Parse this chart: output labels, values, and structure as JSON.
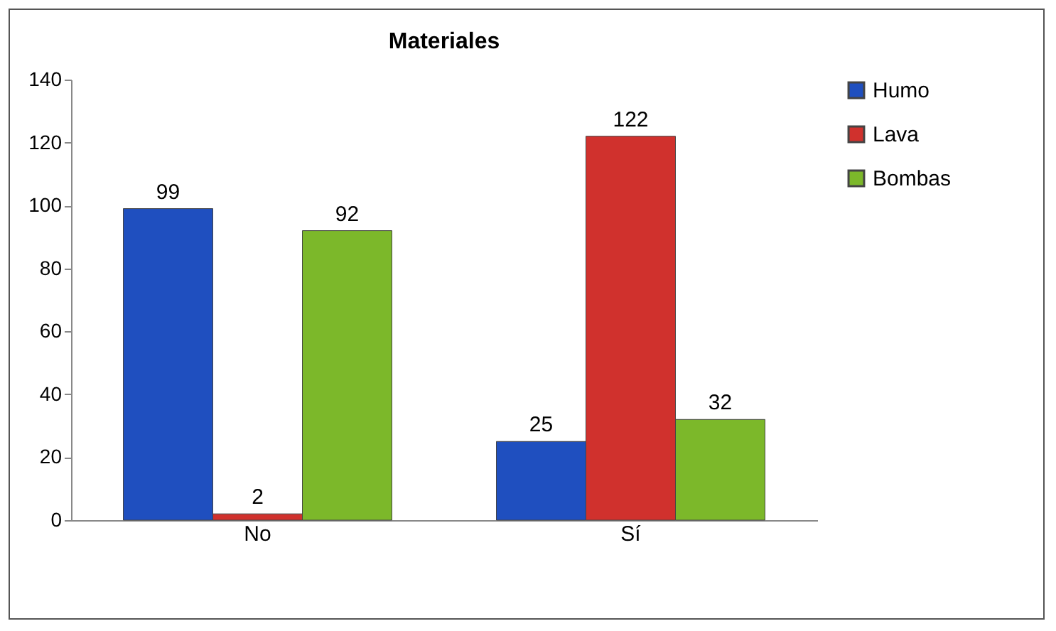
{
  "chart_data": {
    "type": "bar",
    "title": "Materiales",
    "categories": [
      "No",
      "Sí"
    ],
    "series": [
      {
        "name": "Humo",
        "color": "#1f4fbf",
        "values": [
          99,
          25
        ]
      },
      {
        "name": "Lava",
        "color": "#d0312d",
        "values": [
          2,
          122
        ]
      },
      {
        "name": "Bombas",
        "color": "#7cb82a",
        "values": [
          92,
          32
        ]
      }
    ],
    "ylim": [
      0,
      140
    ],
    "yticks": [
      0,
      20,
      40,
      60,
      80,
      100,
      120,
      140
    ],
    "data_labels": true,
    "legend": "right"
  }
}
